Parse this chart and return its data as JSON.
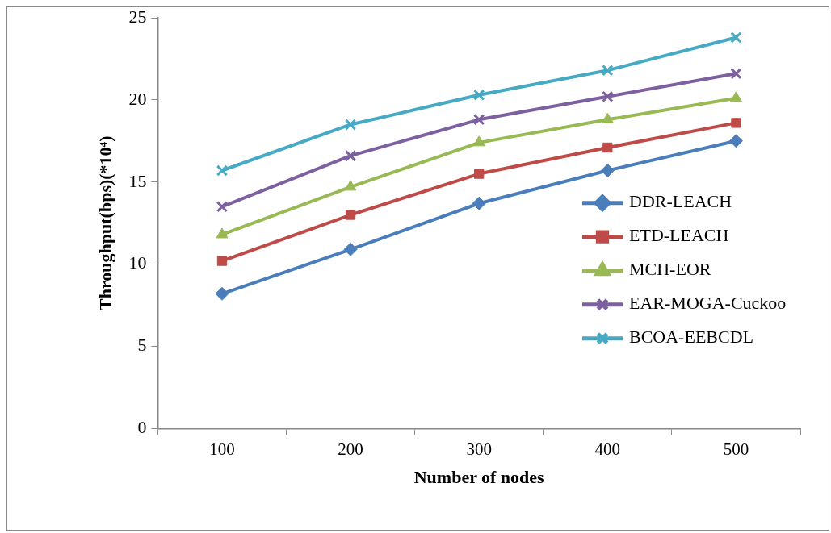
{
  "chart_data": {
    "type": "line",
    "xlabel": "Number of nodes",
    "ylabel": "Throughput(bps)(*10⁴)",
    "categories": [
      "100",
      "200",
      "300",
      "400",
      "500"
    ],
    "series": [
      {
        "name": "DDR-LEACH",
        "color": "#4a7ebb",
        "marker": "diamond",
        "values": [
          8.2,
          10.9,
          13.7,
          15.7,
          17.5
        ]
      },
      {
        "name": "ETD-LEACH",
        "color": "#be4b48",
        "marker": "square",
        "values": [
          10.2,
          13.0,
          15.5,
          17.1,
          18.6
        ]
      },
      {
        "name": "MCH-EOR",
        "color": "#98b954",
        "marker": "triangle",
        "values": [
          11.8,
          14.7,
          17.4,
          18.8,
          20.1
        ]
      },
      {
        "name": "EAR-MOGA-Cuckoo",
        "color": "#7d60a0",
        "marker": "cross",
        "values": [
          13.5,
          16.6,
          18.8,
          20.2,
          21.6
        ]
      },
      {
        "name": "BCOA-EEBCDL",
        "color": "#46aac5",
        "marker": "cross",
        "values": [
          15.7,
          18.5,
          20.3,
          21.8,
          23.8
        ]
      }
    ],
    "ylim": [
      0,
      25
    ],
    "yticks": [
      0,
      5,
      10,
      15,
      20,
      25
    ],
    "grid": false,
    "legend": "right",
    "line_style": "solid"
  }
}
